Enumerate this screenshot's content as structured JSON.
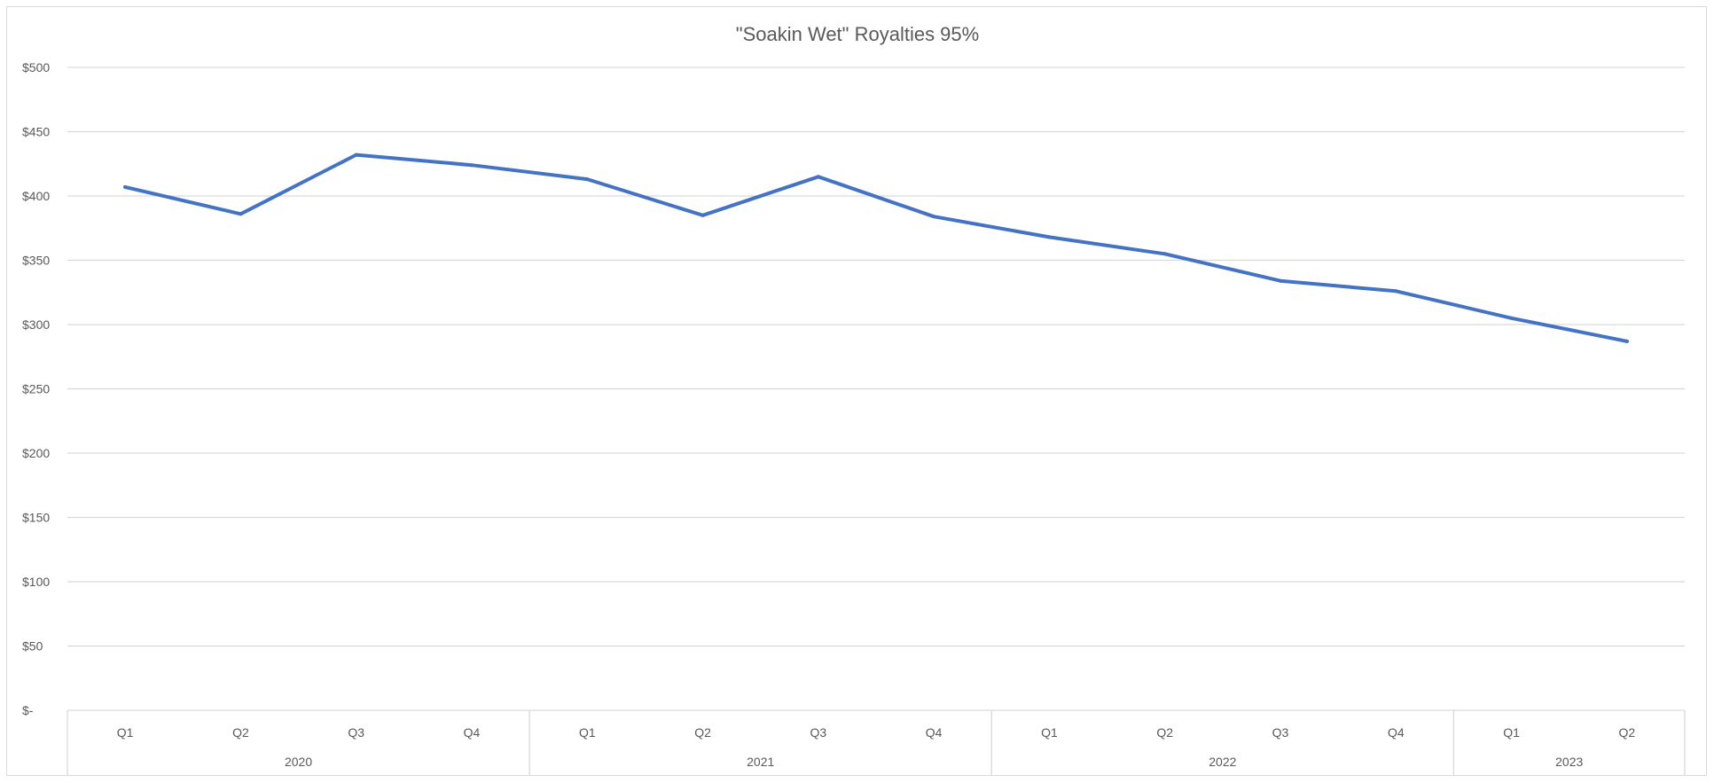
{
  "chart_data": {
    "type": "line",
    "title": "\"Soakin Wet\" Royalties 95%",
    "xlabel": "",
    "ylabel": "",
    "ylim": [
      0,
      500
    ],
    "y_ticks": [
      0,
      50,
      100,
      150,
      200,
      250,
      300,
      350,
      400,
      450,
      500
    ],
    "y_tick_labels": [
      "$-",
      "$50",
      "$100",
      "$150",
      "$200",
      "$250",
      "$300",
      "$350",
      "$400",
      "$450",
      "$500"
    ],
    "grid": true,
    "legend": "none",
    "categories": [
      "Q1",
      "Q2",
      "Q3",
      "Q4",
      "Q1",
      "Q2",
      "Q3",
      "Q4",
      "Q1",
      "Q2",
      "Q3",
      "Q4",
      "Q1",
      "Q2"
    ],
    "groups": [
      {
        "label": "2020",
        "count": 4
      },
      {
        "label": "2021",
        "count": 4
      },
      {
        "label": "2022",
        "count": 4
      },
      {
        "label": "2023",
        "count": 2
      }
    ],
    "series": [
      {
        "values": [
          407,
          386,
          432,
          424,
          413,
          385,
          415,
          384,
          368,
          355,
          334,
          326,
          305,
          287
        ],
        "color": "#4472c4"
      }
    ]
  }
}
